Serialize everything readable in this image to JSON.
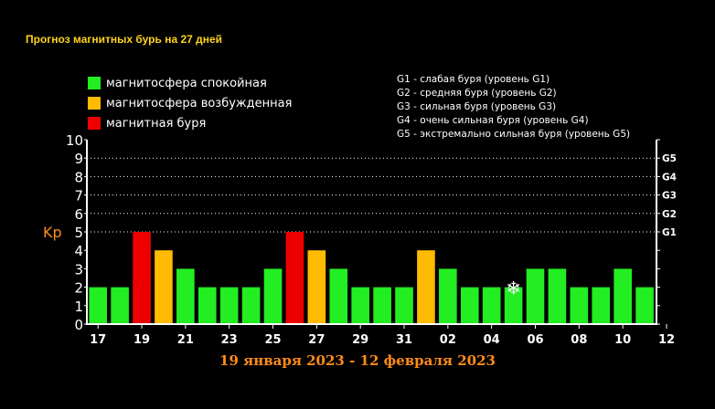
{
  "title": "Прогноз магнитных бурь на 27 дней",
  "legend": [
    {
      "label": "магнитосфера спокойная",
      "color": "#22ee22"
    },
    {
      "label": "магнитосфера возбужденная",
      "color": "#ffbb00"
    },
    {
      "label": "магнитная буря",
      "color": "#ee0000"
    }
  ],
  "storm_levels": [
    "G1 - слабая буря (уровень G1)",
    "G2 - средняя буря (уровень G2)",
    "G3 - сильная буря (уровень G3)",
    "G4 - очень сильная буря (уровень G4)",
    "G5 - экстремально сильная буря (уровень G5)"
  ],
  "date_range": "19 января 2023 - 12 февраля 2023",
  "chart_data": {
    "type": "bar",
    "ylabel": "Kp",
    "ylim": [
      0,
      10
    ],
    "yticks": [
      "0",
      "1",
      "2",
      "3",
      "4",
      "5",
      "6",
      "7",
      "8",
      "9",
      "10"
    ],
    "right_labels": [
      {
        "label": "G1",
        "y": 5
      },
      {
        "label": "G2",
        "y": 6
      },
      {
        "label": "G3",
        "y": 7
      },
      {
        "label": "G4",
        "y": 8
      },
      {
        "label": "G5",
        "y": 9
      }
    ],
    "grid": true,
    "xtick_labels": [
      "17",
      "19",
      "21",
      "23",
      "25",
      "27",
      "29",
      "31",
      "02",
      "04",
      "06",
      "08",
      "10",
      "12"
    ],
    "values": [
      2,
      2,
      5,
      4,
      3,
      2,
      2,
      2,
      3,
      5,
      4,
      3,
      2,
      2,
      2,
      4,
      3,
      2,
      2,
      2,
      3,
      3,
      2,
      2,
      3,
      2
    ],
    "colors": [
      "#22ee22",
      "#22ee22",
      "#ee0000",
      "#ffbb00",
      "#22ee22",
      "#22ee22",
      "#22ee22",
      "#22ee22",
      "#22ee22",
      "#ee0000",
      "#ffbb00",
      "#22ee22",
      "#22ee22",
      "#22ee22",
      "#22ee22",
      "#ffbb00",
      "#22ee22",
      "#22ee22",
      "#22ee22",
      "#22ee22",
      "#22ee22",
      "#22ee22",
      "#22ee22",
      "#22ee22",
      "#22ee22",
      "#22ee22"
    ],
    "current_day_marker": {
      "index": 19,
      "icon": "snowflake-icon",
      "symbol": "❄"
    }
  }
}
